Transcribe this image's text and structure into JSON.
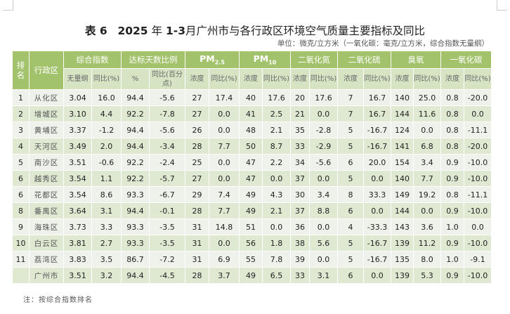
{
  "title": {
    "prefix": "表 6",
    "year": "2025",
    "mid1": "年",
    "months": "1-3",
    "rest": "月广州市与各行政区环境空气质量主要指标及同比"
  },
  "unit": "单位：微克/立方米（一氧化碳：毫克/立方米，综合指数无量纲）",
  "header": {
    "rank": "排名",
    "district": "行政区",
    "groups": [
      "综合指数",
      "达标天数比例",
      "PM",
      "PM",
      "二氧化氮",
      "二氧化硫",
      "臭氧",
      "一氧化碳"
    ],
    "pm25_sub": "2.5",
    "pm10_sub": "10",
    "sub": [
      "无量纲",
      "同比(%)",
      "%",
      "同比(百分点)",
      "浓度",
      "同比(%)",
      "浓度",
      "同比(%)",
      "浓度",
      "同比(%)",
      "浓度",
      "同比(%)",
      "浓度",
      "同比(%)",
      "浓度",
      "同比(%)"
    ]
  },
  "rows": [
    [
      "1",
      "从化区",
      "3.04",
      "16.0",
      "94.4",
      "-5.6",
      "27",
      "17.4",
      "40",
      "17.6",
      "20",
      "17.6",
      "7",
      "16.7",
      "140",
      "25.0",
      "0.8",
      "-20.0"
    ],
    [
      "2",
      "增城区",
      "3.10",
      "4.4",
      "92.2",
      "-7.8",
      "27",
      "0.0",
      "41",
      "2.5",
      "21",
      "0.0",
      "7",
      "16.7",
      "144",
      "11.6",
      "0.8",
      "0.0"
    ],
    [
      "3",
      "黄埔区",
      "3.37",
      "-1.2",
      "94.4",
      "-5.6",
      "26",
      "0.0",
      "48",
      "2.1",
      "35",
      "-2.8",
      "5",
      "-16.7",
      "124",
      "0.0",
      "0.8",
      "-11.1"
    ],
    [
      "4",
      "天河区",
      "3.49",
      "2.0",
      "94.4",
      "-3.4",
      "28",
      "7.7",
      "50",
      "8.7",
      "33",
      "-2.9",
      "5",
      "-16.7",
      "141",
      "6.8",
      "0.8",
      "-20.0"
    ],
    [
      "5",
      "南沙区",
      "3.51",
      "-0.6",
      "92.2",
      "-2.4",
      "25",
      "0.0",
      "47",
      "2.2",
      "34",
      "-5.6",
      "6",
      "20.0",
      "154",
      "3.4",
      "0.9",
      "-10.0"
    ],
    [
      "6",
      "越秀区",
      "3.54",
      "1.1",
      "92.2",
      "-5.7",
      "27",
      "0.0",
      "47",
      "0.0",
      "37",
      "0.0",
      "5",
      "0.0",
      "140",
      "7.7",
      "0.9",
      "-10.0"
    ],
    [
      "6",
      "花都区",
      "3.54",
      "8.6",
      "93.3",
      "-6.7",
      "29",
      "7.4",
      "49",
      "4.3",
      "30",
      "3.4",
      "8",
      "33.3",
      "149",
      "19.2",
      "0.8",
      "-11.1"
    ],
    [
      "8",
      "番禺区",
      "3.64",
      "3.1",
      "94.4",
      "-0.1",
      "28",
      "7.7",
      "49",
      "2.1",
      "37",
      "8.8",
      "6",
      "0.0",
      "144",
      "0.0",
      "0.9",
      "-10.0"
    ],
    [
      "9",
      "海珠区",
      "3.73",
      "3.3",
      "93.3",
      "-3.5",
      "31",
      "14.8",
      "51",
      "0.0",
      "36",
      "0.0",
      "4",
      "-33.3",
      "143",
      "3.6",
      "1.0",
      "0.0"
    ],
    [
      "10",
      "白云区",
      "3.81",
      "2.7",
      "93.3",
      "-3.5",
      "31",
      "0.0",
      "56",
      "1.8",
      "38",
      "5.6",
      "5",
      "-16.7",
      "139",
      "11.2",
      "0.9",
      "-10.0"
    ],
    [
      "11",
      "荔湾区",
      "3.83",
      "3.5",
      "86.7",
      "-7.2",
      "31",
      "6.9",
      "55",
      "7.8",
      "39",
      "0.0",
      "5",
      "-16.7",
      "135",
      "8.0",
      "1.0",
      "-9.1"
    ],
    [
      "",
      "广州市",
      "3.51",
      "3.2",
      "94.4",
      "-4.5",
      "28",
      "3.7",
      "49",
      "6.5",
      "33",
      "3.1",
      "6",
      "0.0",
      "139",
      "5.3",
      "0.9",
      "-10.0"
    ]
  ],
  "note": "注：按综合指数排名",
  "colors": {
    "header": "#a2c26b",
    "subheader": "#d6e4c4",
    "row_light": "#eef2ea",
    "row_green": "#dfe9d2"
  }
}
